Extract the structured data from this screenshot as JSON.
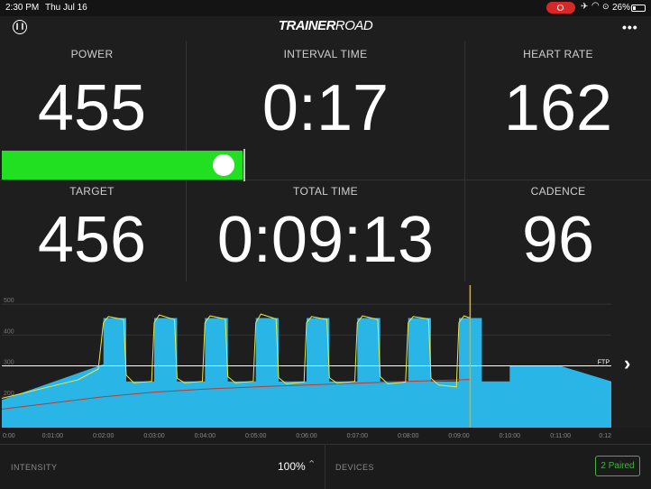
{
  "status_bar": {
    "time": "2:30 PM",
    "date": "Thu Jul 16",
    "battery": "26%"
  },
  "header": {
    "logo_bold": "TRAINER",
    "logo_rest": "ROAD"
  },
  "metrics": {
    "power": {
      "label": "POWER",
      "value": "455"
    },
    "interval_time": {
      "label": "INTERVAL TIME",
      "value": "0:17"
    },
    "heart_rate": {
      "label": "HEART RATE",
      "value": "162"
    },
    "target": {
      "label": "TARGET",
      "value": "456"
    },
    "total_time": {
      "label": "TOTAL TIME",
      "value": "0:09:13"
    },
    "cadence": {
      "label": "CADENCE",
      "value": "96"
    }
  },
  "power_bar": {
    "fill_fraction": 0.99,
    "color": "#21e021"
  },
  "chart_data": {
    "type": "area",
    "ftp_label": "FTP",
    "ftp_watts": 300,
    "ylim": [
      100,
      550
    ],
    "y_ticks": [
      "500",
      "400",
      "300",
      "200"
    ],
    "x_ticks": [
      "0:00",
      "0:01:00",
      "0:02:00",
      "0:03:00",
      "0:04:00",
      "0:05:00",
      "0:06:00",
      "0:07:00",
      "0:08:00",
      "0:09:00",
      "0:10:00",
      "0:11:00",
      "0:12"
    ],
    "current_time_min": 9.22,
    "target_workout": [
      [
        0,
        190
      ],
      [
        2.0,
        305
      ],
      [
        2.0,
        455
      ],
      [
        2.45,
        455
      ],
      [
        2.45,
        250
      ],
      [
        3.0,
        250
      ],
      [
        3.0,
        455
      ],
      [
        3.45,
        455
      ],
      [
        3.45,
        250
      ],
      [
        4.0,
        250
      ],
      [
        4.0,
        455
      ],
      [
        4.45,
        455
      ],
      [
        4.45,
        250
      ],
      [
        5.0,
        250
      ],
      [
        5.0,
        455
      ],
      [
        5.45,
        455
      ],
      [
        5.45,
        250
      ],
      [
        6.0,
        250
      ],
      [
        6.0,
        455
      ],
      [
        6.45,
        455
      ],
      [
        6.45,
        250
      ],
      [
        7.0,
        250
      ],
      [
        7.0,
        455
      ],
      [
        7.45,
        455
      ],
      [
        7.45,
        250
      ],
      [
        8.0,
        250
      ],
      [
        8.0,
        455
      ],
      [
        8.45,
        455
      ],
      [
        8.45,
        250
      ],
      [
        9.0,
        250
      ],
      [
        9.0,
        455
      ],
      [
        9.45,
        455
      ],
      [
        9.45,
        250
      ],
      [
        10.0,
        250
      ],
      [
        10.0,
        300
      ],
      [
        11.0,
        300
      ],
      [
        12.0,
        250
      ]
    ],
    "actual_power": [
      [
        0,
        195
      ],
      [
        0.5,
        215
      ],
      [
        1.0,
        235
      ],
      [
        1.5,
        255
      ],
      [
        1.9,
        290
      ],
      [
        2.0,
        440
      ],
      [
        2.1,
        460
      ],
      [
        2.4,
        450
      ],
      [
        2.45,
        270
      ],
      [
        2.6,
        245
      ],
      [
        2.95,
        250
      ],
      [
        3.0,
        440
      ],
      [
        3.1,
        465
      ],
      [
        3.4,
        450
      ],
      [
        3.45,
        260
      ],
      [
        3.6,
        245
      ],
      [
        3.95,
        250
      ],
      [
        4.0,
        440
      ],
      [
        4.1,
        462
      ],
      [
        4.4,
        452
      ],
      [
        4.45,
        265
      ],
      [
        4.6,
        245
      ],
      [
        4.95,
        250
      ],
      [
        5.0,
        440
      ],
      [
        5.1,
        468
      ],
      [
        5.4,
        452
      ],
      [
        5.45,
        262
      ],
      [
        5.6,
        242
      ],
      [
        5.95,
        248
      ],
      [
        6.0,
        440
      ],
      [
        6.1,
        460
      ],
      [
        6.4,
        450
      ],
      [
        6.45,
        262
      ],
      [
        6.6,
        244
      ],
      [
        6.95,
        250
      ],
      [
        7.0,
        440
      ],
      [
        7.1,
        462
      ],
      [
        7.4,
        450
      ],
      [
        7.45,
        265
      ],
      [
        7.6,
        242
      ],
      [
        7.95,
        248
      ],
      [
        8.0,
        440
      ],
      [
        8.1,
        460
      ],
      [
        8.4,
        452
      ],
      [
        8.45,
        260
      ],
      [
        8.6,
        238
      ],
      [
        8.95,
        232
      ],
      [
        9.0,
        440
      ],
      [
        9.1,
        462
      ],
      [
        9.22,
        455
      ]
    ],
    "heart_rate": [
      [
        0,
        160
      ],
      [
        1.0,
        180
      ],
      [
        2.0,
        200
      ],
      [
        3.0,
        215
      ],
      [
        4.0,
        225
      ],
      [
        5.0,
        232
      ],
      [
        6.0,
        238
      ],
      [
        7.0,
        244
      ],
      [
        8.0,
        250
      ],
      [
        9.0,
        255
      ],
      [
        9.22,
        256
      ]
    ],
    "colors": {
      "target_fill": "#29b6e6",
      "actual_power": "#e8e84a",
      "heart_rate": "#c0392b",
      "ftp_line": "#ffffff",
      "cursor": "#e8a81e"
    }
  },
  "bottom_bar": {
    "intensity_label": "INTENSITY",
    "intensity_value": "100%",
    "devices_label": "DEVICES",
    "paired_label": "2 Paired"
  },
  "icons": {
    "pause": "pause-icon",
    "more": "more-icon",
    "next": "chevron-right-icon"
  }
}
